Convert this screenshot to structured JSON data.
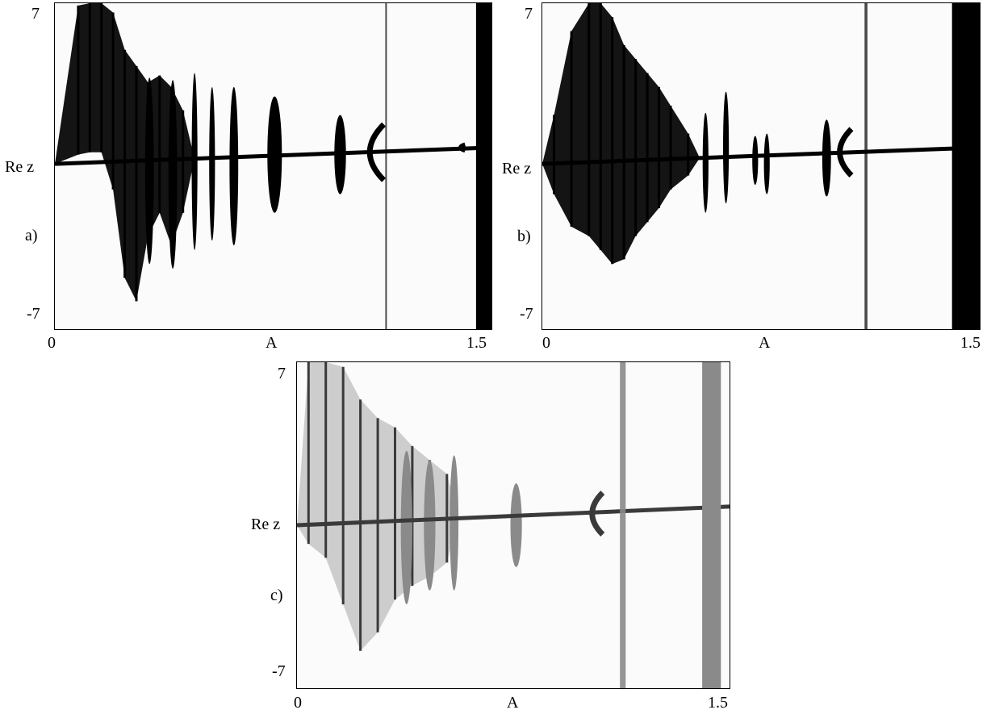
{
  "chart_data": [
    {
      "id": "a",
      "type": "scatter",
      "panel_label": "a)",
      "xlabel": "A",
      "ylabel": "Re z",
      "x_tick_labels": [
        "0",
        "1.5"
      ],
      "y_tick_labels": [
        "7",
        "-7"
      ],
      "xlim": [
        0,
        1.5
      ],
      "ylim": [
        -7,
        7
      ],
      "color": "#000000",
      "main_branch": [
        [
          0,
          0.1
        ],
        [
          1.5,
          0.8
        ]
      ],
      "chaotic_band": [
        {
          "x": 0.08,
          "top": 6.9,
          "bottom": 0.5
        },
        {
          "x": 0.12,
          "top": 7.0,
          "bottom": 0.6
        },
        {
          "x": 0.16,
          "top": 7.0,
          "bottom": 0.6
        },
        {
          "x": 0.2,
          "top": 6.6,
          "bottom": -1.0
        },
        {
          "x": 0.24,
          "top": 5.0,
          "bottom": -4.8
        },
        {
          "x": 0.28,
          "top": 4.3,
          "bottom": -5.8
        },
        {
          "x": 0.32,
          "top": 3.6,
          "bottom": -3.0
        },
        {
          "x": 0.36,
          "top": 3.9,
          "bottom": -2.0
        },
        {
          "x": 0.4,
          "top": 3.4,
          "bottom": -3.4
        },
        {
          "x": 0.44,
          "top": 2.4,
          "bottom": -2.0
        }
      ],
      "islands": [
        {
          "x": [
            0.31,
            0.34
          ],
          "top": 3.8,
          "bottom": -4.2
        },
        {
          "x": [
            0.39,
            0.42
          ],
          "top": 3.7,
          "bottom": -4.4
        },
        {
          "x": [
            0.47,
            0.49
          ],
          "top": 4.0,
          "bottom": -3.6
        },
        {
          "x": [
            0.53,
            0.55
          ],
          "top": 3.4,
          "bottom": -3.2
        },
        {
          "x": [
            0.6,
            0.63
          ],
          "top": 3.4,
          "bottom": -3.4
        },
        {
          "x": [
            0.73,
            0.78
          ],
          "top": 3.0,
          "bottom": -2.0
        },
        {
          "x": [
            0.96,
            1.0
          ],
          "top": 2.2,
          "bottom": -1.2
        }
      ],
      "arcs": [
        {
          "x": 1.13,
          "top": 1.8,
          "bottom": -0.6
        },
        {
          "x": 1.41,
          "top": 0.9,
          "bottom": 0.7
        }
      ],
      "vertical_lines": [
        {
          "x": 1.135,
          "width": 0.004
        }
      ],
      "vertical_bands": [
        {
          "x": [
            1.447,
            1.5
          ]
        }
      ]
    },
    {
      "id": "b",
      "type": "scatter",
      "panel_label": "b)",
      "xlabel": "A",
      "ylabel": "Re z",
      "x_tick_labels": [
        "0",
        "1.5"
      ],
      "y_tick_labels": [
        "7",
        "-7"
      ],
      "xlim": [
        0,
        1.5
      ],
      "ylim": [
        -7,
        7
      ],
      "color": "#000000",
      "main_branch": [
        [
          0,
          0.1
        ],
        [
          1.5,
          0.8
        ]
      ],
      "chaotic_band": [
        {
          "x": 0.04,
          "top": 2.2,
          "bottom": -1.2
        },
        {
          "x": 0.1,
          "top": 5.8,
          "bottom": -2.6
        },
        {
          "x": 0.16,
          "top": 7.0,
          "bottom": -3.0
        },
        {
          "x": 0.2,
          "top": 7.0,
          "bottom": -3.6
        },
        {
          "x": 0.24,
          "top": 6.4,
          "bottom": -4.2
        },
        {
          "x": 0.28,
          "top": 5.2,
          "bottom": -4.0
        },
        {
          "x": 0.32,
          "top": 4.6,
          "bottom": -3.0
        },
        {
          "x": 0.36,
          "top": 4.0,
          "bottom": -2.4
        },
        {
          "x": 0.4,
          "top": 3.4,
          "bottom": -1.8
        },
        {
          "x": 0.44,
          "top": 2.6,
          "bottom": -1.0
        },
        {
          "x": 0.5,
          "top": 1.4,
          "bottom": -0.4
        }
      ],
      "islands": [
        {
          "x": [
            0.55,
            0.57
          ],
          "top": 2.3,
          "bottom": -2.0
        },
        {
          "x": [
            0.62,
            0.64
          ],
          "top": 3.2,
          "bottom": -1.6
        },
        {
          "x": [
            0.72,
            0.74
          ],
          "top": 1.3,
          "bottom": -0.8
        },
        {
          "x": [
            0.76,
            0.78
          ],
          "top": 1.4,
          "bottom": -1.2
        },
        {
          "x": [
            0.96,
            0.99
          ],
          "top": 2.0,
          "bottom": -1.3
        }
      ],
      "arcs": [
        {
          "x": 1.06,
          "top": 1.6,
          "bottom": -0.4
        }
      ],
      "vertical_lines": [
        {
          "x": 1.105,
          "width": 0.01
        }
      ],
      "vertical_bands": [
        {
          "x": [
            1.405,
            1.5
          ]
        }
      ]
    },
    {
      "id": "c",
      "type": "scatter",
      "panel_label": "c)",
      "xlabel": "A",
      "ylabel": "Re z",
      "x_tick_labels": [
        "0",
        "1.5"
      ],
      "y_tick_labels": [
        "7",
        "-7"
      ],
      "xlim": [
        0,
        1.5
      ],
      "ylim": [
        -7,
        7
      ],
      "colors": {
        "dark": "#3a3a3a",
        "mid": "#8a8a8a",
        "light": "#c4c4c4"
      },
      "main_branch": [
        [
          0,
          0.0
        ],
        [
          1.5,
          0.8
        ]
      ],
      "chaotic_band": [
        {
          "x": 0.04,
          "top": 7.0,
          "bottom": -0.8
        },
        {
          "x": 0.1,
          "top": 7.0,
          "bottom": -1.4
        },
        {
          "x": 0.16,
          "top": 6.8,
          "bottom": -3.4
        },
        {
          "x": 0.22,
          "top": 5.4,
          "bottom": -5.4
        },
        {
          "x": 0.28,
          "top": 4.6,
          "bottom": -4.6
        },
        {
          "x": 0.34,
          "top": 4.2,
          "bottom": -3.2
        },
        {
          "x": 0.4,
          "top": 3.4,
          "bottom": -2.6
        },
        {
          "x": 0.46,
          "top": 2.8,
          "bottom": -2.2
        },
        {
          "x": 0.52,
          "top": 2.2,
          "bottom": -1.6
        }
      ],
      "islands": [
        {
          "x": [
            0.36,
            0.4
          ],
          "top": 3.2,
          "bottom": -3.4
        },
        {
          "x": [
            0.44,
            0.48
          ],
          "top": 2.8,
          "bottom": -2.8
        },
        {
          "x": [
            0.53,
            0.56
          ],
          "top": 3.0,
          "bottom": -2.8
        },
        {
          "x": [
            0.74,
            0.78
          ],
          "top": 1.8,
          "bottom": -1.8
        }
      ],
      "arcs": [
        {
          "x": 1.06,
          "top": 1.4,
          "bottom": -0.4
        }
      ],
      "vertical_lines": [
        {
          "x": 1.12,
          "width": 0.02
        }
      ],
      "vertical_bands": [
        {
          "x": [
            1.405,
            1.47
          ]
        }
      ]
    }
  ]
}
